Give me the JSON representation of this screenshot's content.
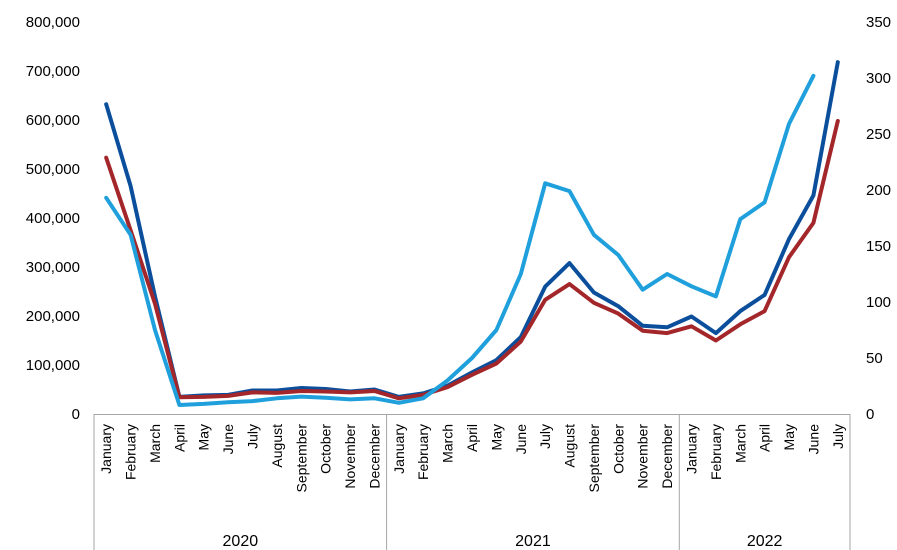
{
  "chart_data": {
    "type": "line",
    "title": "",
    "xlabel": "",
    "ylabel": "",
    "ylim": [
      0,
      800000
    ],
    "y2lim": [
      0,
      350
    ],
    "yticks": [
      "0",
      "100,000",
      "200,000",
      "300,000",
      "400,000",
      "500,000",
      "600,000",
      "700,000",
      "800,000"
    ],
    "y2ticks": [
      "0",
      "50",
      "100",
      "150",
      "200",
      "250",
      "300",
      "350"
    ],
    "grid": false,
    "legend": "none",
    "year_groups": [
      {
        "year": "2020",
        "months": [
          "January",
          "February",
          "March",
          "April",
          "May",
          "June",
          "July",
          "August",
          "September",
          "October",
          "November",
          "December"
        ]
      },
      {
        "year": "2021",
        "months": [
          "January",
          "February",
          "March",
          "April",
          "May",
          "June",
          "July",
          "August",
          "September",
          "October",
          "November",
          "December"
        ]
      },
      {
        "year": "2022",
        "months": [
          "January",
          "February",
          "March",
          "April",
          "May",
          "June",
          "July"
        ]
      }
    ],
    "series": [
      {
        "axis": "left",
        "color": "#0b4f9c",
        "values": [
          632000,
          465000,
          240000,
          35000,
          38000,
          39000,
          48000,
          48000,
          53000,
          51000,
          46000,
          50000,
          35000,
          42000,
          58000,
          85000,
          110000,
          157000,
          260000,
          308000,
          248000,
          220000,
          180000,
          177000,
          199000,
          165000,
          210000,
          243000,
          357000,
          446000,
          718000
        ]
      },
      {
        "axis": "left",
        "color": "#a3262a",
        "values": [
          523000,
          375000,
          225000,
          34000,
          35000,
          37000,
          44000,
          43000,
          47000,
          46000,
          44000,
          47000,
          32000,
          39000,
          55000,
          80000,
          103000,
          148000,
          233000,
          265000,
          227000,
          205000,
          170000,
          165000,
          179000,
          150000,
          183000,
          210000,
          320000,
          390000,
          598000
        ]
      },
      {
        "axis": "right",
        "color": "#1fa0dc",
        "values": [
          193,
          160,
          75,
          8,
          9,
          10.5,
          11.5,
          14,
          15.5,
          14.5,
          13,
          14,
          10,
          14,
          30,
          50,
          75,
          125,
          206,
          199,
          160,
          142,
          111,
          125,
          114,
          105,
          174,
          189,
          259,
          302
        ]
      }
    ]
  }
}
